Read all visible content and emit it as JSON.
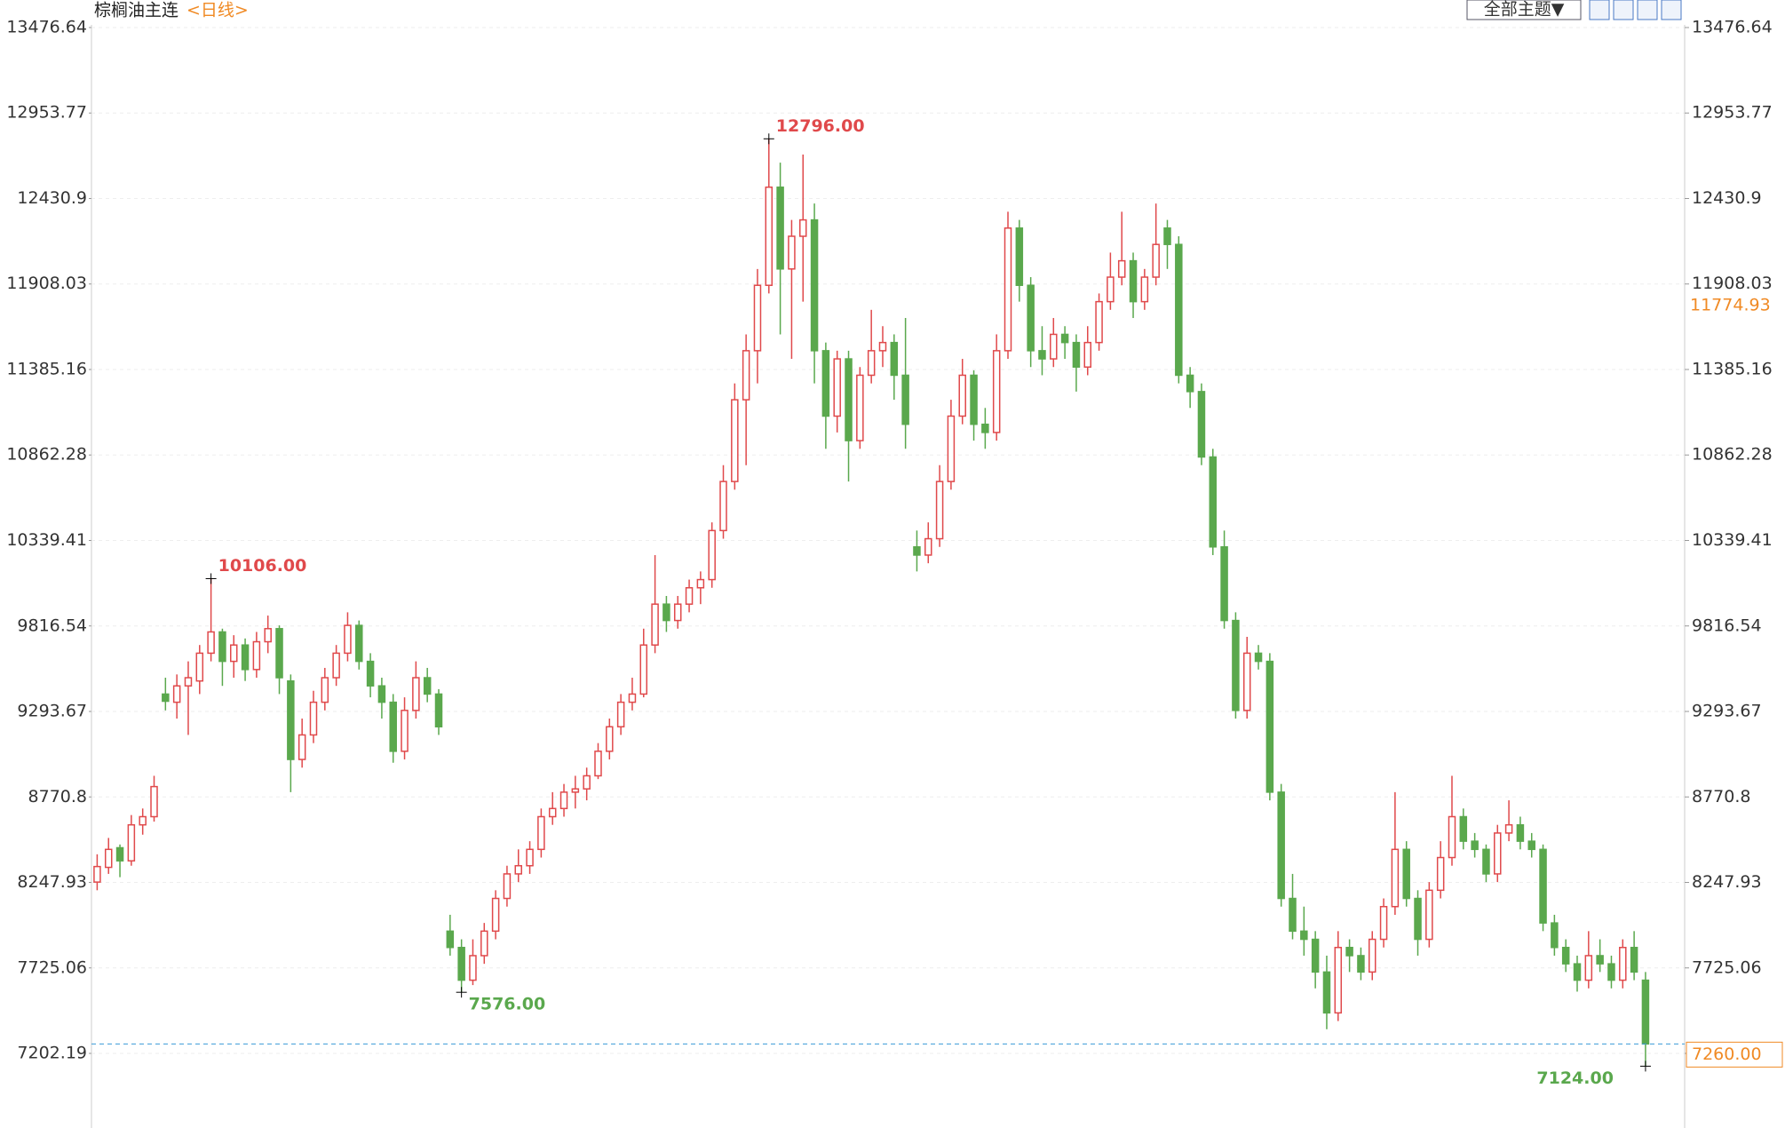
{
  "chart_data": {
    "type": "candlestick",
    "title": "棕榈油主连",
    "subtitle": "<日线>",
    "toolbar": "全部主题▼",
    "up_color": "#e0494b",
    "down_color": "#5aa84d",
    "grid": true,
    "ylim": [
      6745.9,
      13645.0
    ],
    "yticks": [
      13476.64,
      12953.77,
      12430.9,
      11908.03,
      11385.16,
      10862.28,
      10339.41,
      9816.54,
      9293.67,
      8770.8,
      8247.93,
      7725.06,
      7202.19
    ],
    "annotations": [
      {
        "kind": "high",
        "value": 10106,
        "label": "10106.00"
      },
      {
        "kind": "high",
        "value": 12796,
        "label": "12796.00"
      },
      {
        "kind": "low",
        "value": 7576,
        "label": "7576.00"
      },
      {
        "kind": "low",
        "value": 7124,
        "label": "7124.00"
      }
    ],
    "last_price": {
      "value": 7260,
      "label": "7260.00"
    },
    "price_marker": {
      "value": 11774.93,
      "label": "11774.93"
    },
    "ohlc": [
      [
        8250,
        8420,
        8200,
        8345
      ],
      [
        8340,
        8520,
        8300,
        8450
      ],
      [
        8460,
        8480,
        8280,
        8380
      ],
      [
        8380,
        8660,
        8350,
        8600
      ],
      [
        8600,
        8700,
        8540,
        8650
      ],
      [
        8650,
        8900,
        8620,
        8834
      ],
      [
        9400,
        9500,
        9300,
        9356
      ],
      [
        9350,
        9520,
        9250,
        9450
      ],
      [
        9450,
        9600,
        9150,
        9500
      ],
      [
        9480,
        9700,
        9400,
        9650
      ],
      [
        9650,
        10106,
        9600,
        9780
      ],
      [
        9780,
        9800,
        9450,
        9600
      ],
      [
        9600,
        9760,
        9500,
        9700
      ],
      [
        9700,
        9740,
        9480,
        9550
      ],
      [
        9550,
        9780,
        9500,
        9720
      ],
      [
        9720,
        9880,
        9650,
        9800
      ],
      [
        9800,
        9820,
        9400,
        9500
      ],
      [
        9480,
        9520,
        8800,
        9000
      ],
      [
        9000,
        9250,
        8950,
        9150
      ],
      [
        9150,
        9420,
        9100,
        9350
      ],
      [
        9350,
        9560,
        9300,
        9500
      ],
      [
        9500,
        9700,
        9450,
        9650
      ],
      [
        9650,
        9900,
        9600,
        9820
      ],
      [
        9820,
        9850,
        9550,
        9600
      ],
      [
        9600,
        9650,
        9380,
        9450
      ],
      [
        9450,
        9500,
        9250,
        9350
      ],
      [
        9350,
        9400,
        8980,
        9050
      ],
      [
        9050,
        9380,
        9000,
        9300
      ],
      [
        9300,
        9600,
        9250,
        9500
      ],
      [
        9500,
        9560,
        9350,
        9400
      ],
      [
        9400,
        9430,
        9150,
        9200
      ],
      [
        7950,
        8050,
        7800,
        7850
      ],
      [
        7850,
        7900,
        7576,
        7650
      ],
      [
        7650,
        7900,
        7620,
        7800
      ],
      [
        7800,
        8000,
        7750,
        7950
      ],
      [
        7950,
        8200,
        7900,
        8150
      ],
      [
        8150,
        8350,
        8100,
        8300
      ],
      [
        8300,
        8450,
        8250,
        8350
      ],
      [
        8350,
        8500,
        8300,
        8450
      ],
      [
        8450,
        8700,
        8400,
        8650
      ],
      [
        8650,
        8800,
        8600,
        8700
      ],
      [
        8700,
        8850,
        8650,
        8800
      ],
      [
        8800,
        8900,
        8700,
        8820
      ],
      [
        8820,
        8950,
        8750,
        8900
      ],
      [
        8900,
        9100,
        8880,
        9050
      ],
      [
        9050,
        9250,
        9000,
        9200
      ],
      [
        9200,
        9400,
        9150,
        9350
      ],
      [
        9350,
        9500,
        9300,
        9400
      ],
      [
        9400,
        9800,
        9380,
        9700
      ],
      [
        9700,
        10250,
        9650,
        9950
      ],
      [
        9950,
        10000,
        9780,
        9850
      ],
      [
        9850,
        10000,
        9800,
        9950
      ],
      [
        9950,
        10100,
        9900,
        10050
      ],
      [
        10050,
        10150,
        9950,
        10100
      ],
      [
        10100,
        10450,
        10050,
        10400
      ],
      [
        10400,
        10800,
        10350,
        10700
      ],
      [
        10700,
        11300,
        10650,
        11200
      ],
      [
        11200,
        11600,
        10800,
        11500
      ],
      [
        11500,
        12000,
        11300,
        11900
      ],
      [
        11900,
        12796,
        11850,
        12500
      ],
      [
        12500,
        12650,
        11600,
        12000
      ],
      [
        12000,
        12300,
        11450,
        12200
      ],
      [
        12200,
        12700,
        11800,
        12300
      ],
      [
        12300,
        12400,
        11300,
        11500
      ],
      [
        11500,
        11550,
        10900,
        11100
      ],
      [
        11100,
        11500,
        11000,
        11450
      ],
      [
        11450,
        11500,
        10700,
        10950
      ],
      [
        10950,
        11400,
        10900,
        11350
      ],
      [
        11350,
        11750,
        11300,
        11500
      ],
      [
        11500,
        11650,
        11400,
        11550
      ],
      [
        11550,
        11600,
        11200,
        11350
      ],
      [
        11350,
        11700,
        10900,
        11050
      ],
      [
        10300,
        10400,
        10150,
        10250
      ],
      [
        10250,
        10450,
        10200,
        10350
      ],
      [
        10350,
        10800,
        10300,
        10700
      ],
      [
        10700,
        11200,
        10650,
        11100
      ],
      [
        11100,
        11450,
        11050,
        11350
      ],
      [
        11350,
        11380,
        10950,
        11050
      ],
      [
        11050,
        11150,
        10900,
        11000
      ],
      [
        11000,
        11600,
        10950,
        11500
      ],
      [
        11500,
        12350,
        11450,
        12250
      ],
      [
        12250,
        12300,
        11800,
        11900
      ],
      [
        11900,
        11950,
        11400,
        11500
      ],
      [
        11500,
        11650,
        11350,
        11450
      ],
      [
        11450,
        11700,
        11400,
        11600
      ],
      [
        11600,
        11650,
        11450,
        11550
      ],
      [
        11550,
        11600,
        11250,
        11400
      ],
      [
        11400,
        11650,
        11350,
        11550
      ],
      [
        11550,
        11850,
        11500,
        11800
      ],
      [
        11800,
        12100,
        11750,
        11950
      ],
      [
        11950,
        12350,
        11900,
        12050
      ],
      [
        12050,
        12100,
        11700,
        11800
      ],
      [
        11800,
        12000,
        11750,
        11950
      ],
      [
        11950,
        12400,
        11900,
        12150
      ],
      [
        12250,
        12300,
        12000,
        12150
      ],
      [
        12150,
        12200,
        11300,
        11350
      ],
      [
        11350,
        11400,
        11150,
        11250
      ],
      [
        11250,
        11300,
        10800,
        10850
      ],
      [
        10850,
        10900,
        10250,
        10300
      ],
      [
        10300,
        10400,
        9800,
        9850
      ],
      [
        9850,
        9900,
        9250,
        9300
      ],
      [
        9300,
        9750,
        9250,
        9650
      ],
      [
        9650,
        9700,
        9550,
        9600
      ],
      [
        9600,
        9650,
        8750,
        8800
      ],
      [
        8800,
        8850,
        8100,
        8150
      ],
      [
        8150,
        8300,
        7900,
        7950
      ],
      [
        7950,
        8100,
        7800,
        7900
      ],
      [
        7900,
        7950,
        7600,
        7700
      ],
      [
        7700,
        7800,
        7350,
        7450
      ],
      [
        7450,
        7950,
        7400,
        7850
      ],
      [
        7850,
        7900,
        7700,
        7800
      ],
      [
        7800,
        7850,
        7650,
        7700
      ],
      [
        7700,
        7950,
        7650,
        7900
      ],
      [
        7900,
        8150,
        7850,
        8100
      ],
      [
        8100,
        8800,
        8050,
        8450
      ],
      [
        8450,
        8500,
        8100,
        8150
      ],
      [
        8150,
        8200,
        7800,
        7900
      ],
      [
        7900,
        8250,
        7850,
        8200
      ],
      [
        8200,
        8500,
        8150,
        8400
      ],
      [
        8400,
        8900,
        8350,
        8650
      ],
      [
        8650,
        8700,
        8450,
        8500
      ],
      [
        8500,
        8550,
        8400,
        8450
      ],
      [
        8450,
        8480,
        8250,
        8300
      ],
      [
        8300,
        8600,
        8250,
        8550
      ],
      [
        8550,
        8750,
        8500,
        8600
      ],
      [
        8600,
        8650,
        8450,
        8500
      ],
      [
        8500,
        8550,
        8400,
        8450
      ],
      [
        8450,
        8480,
        7950,
        8000
      ],
      [
        8000,
        8050,
        7800,
        7850
      ],
      [
        7850,
        7900,
        7700,
        7750
      ],
      [
        7750,
        7800,
        7580,
        7650
      ],
      [
        7650,
        7950,
        7600,
        7800
      ],
      [
        7800,
        7900,
        7700,
        7750
      ],
      [
        7750,
        7800,
        7600,
        7650
      ],
      [
        7650,
        7900,
        7600,
        7850
      ],
      [
        7850,
        7950,
        7650,
        7700
      ],
      [
        7650,
        7700,
        7124,
        7260
      ]
    ]
  }
}
